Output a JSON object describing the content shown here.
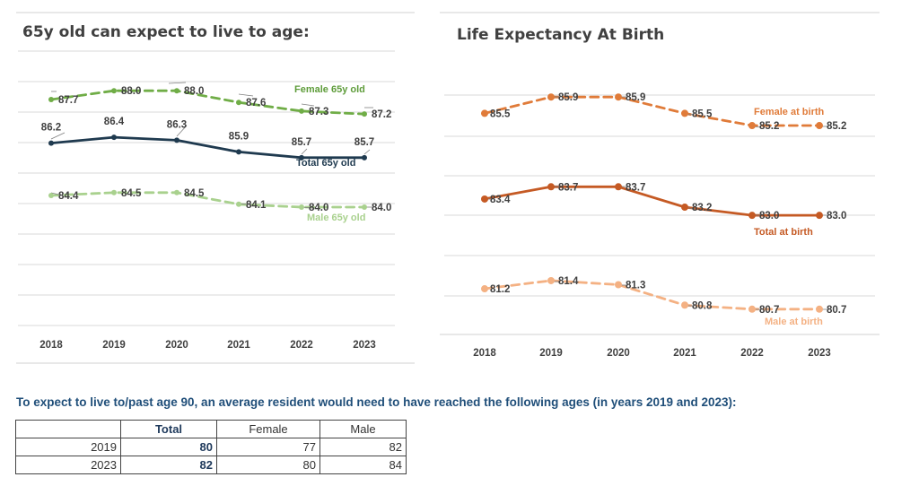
{
  "chart_data": [
    {
      "type": "line",
      "title": "65y old can expect to live to age:",
      "x": [
        "2018",
        "2019",
        "2020",
        "2021",
        "2022",
        "2023"
      ],
      "series": [
        {
          "name": "Female 65y old",
          "values": [
            87.7,
            88.0,
            88.0,
            87.6,
            87.3,
            87.2
          ],
          "color": "#70AD47",
          "style": "dashed"
        },
        {
          "name": "Total 65y old",
          "values": [
            86.2,
            86.4,
            86.3,
            85.9,
            85.7,
            85.7
          ],
          "color": "#1F3A4F",
          "style": "solid"
        },
        {
          "name": "Male 65y old",
          "values": [
            84.4,
            84.5,
            84.5,
            84.1,
            84.0,
            84.0
          ],
          "color": "#A9D18E",
          "style": "dashed"
        }
      ],
      "grid": true,
      "legend": "inline labels"
    },
    {
      "type": "line",
      "title": "Life Expectancy At Birth",
      "x": [
        "2018",
        "2019",
        "2020",
        "2021",
        "2022",
        "2023"
      ],
      "series": [
        {
          "name": "Female at birth",
          "values": [
            85.5,
            85.9,
            85.9,
            85.5,
            85.2,
            85.2
          ],
          "color": "#E07B39",
          "style": "dashed"
        },
        {
          "name": "Total at birth",
          "values": [
            83.4,
            83.7,
            83.7,
            83.2,
            83.0,
            83.0
          ],
          "color": "#C55A24",
          "style": "solid"
        },
        {
          "name": "Male at birth",
          "values": [
            81.2,
            81.4,
            81.3,
            80.8,
            80.7,
            80.7
          ],
          "color": "#F4B183",
          "style": "dashed"
        }
      ],
      "grid": true,
      "legend": "inline labels"
    }
  ],
  "note": "To expect to live to/past age 90, an average resident would need to have reached the following ages (in years 2019 and 2023):",
  "table": {
    "headers": [
      "",
      "Total",
      "Female",
      "Male"
    ],
    "rows": [
      {
        "year": "2019",
        "total": "80",
        "female": "77",
        "male": "82"
      },
      {
        "year": "2023",
        "total": "82",
        "female": "80",
        "male": "84"
      }
    ]
  }
}
